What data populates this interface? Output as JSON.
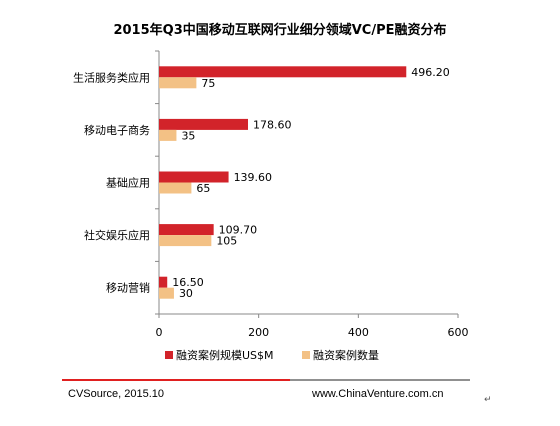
{
  "chart_data": {
    "type": "bar",
    "orientation": "horizontal",
    "title": "2015年Q3中国移动互联网行业细分领域VC/PE融资分布",
    "categories": [
      "生活服务类应用",
      "移动电子商务",
      "基础应用",
      "社交娱乐应用",
      "移动营销"
    ],
    "series": [
      {
        "name": "融资案例规模US$M",
        "values": [
          496.2,
          178.6,
          139.6,
          109.7,
          16.5
        ],
        "labels": [
          "496.20",
          "178.60",
          "139.60",
          "109.70",
          "16.50"
        ],
        "color": "#d2232a"
      },
      {
        "name": "融资案例数量",
        "values": [
          75,
          35,
          65,
          105,
          30
        ],
        "labels": [
          "75",
          "35",
          "65",
          "105",
          "30"
        ],
        "color": "#f3c185"
      }
    ],
    "xlim": [
      0,
      600
    ],
    "ticks": [
      0,
      200,
      400,
      600
    ],
    "tick_labels": [
      "0",
      "200",
      "400",
      "600"
    ],
    "grid": false,
    "legend_position": "bottom"
  },
  "footer": {
    "source": "CVSource, 2015.10",
    "website": "www.ChinaVenture.com.cn",
    "return_mark": "↵"
  },
  "colors": {
    "accent_line": "#e02020"
  }
}
